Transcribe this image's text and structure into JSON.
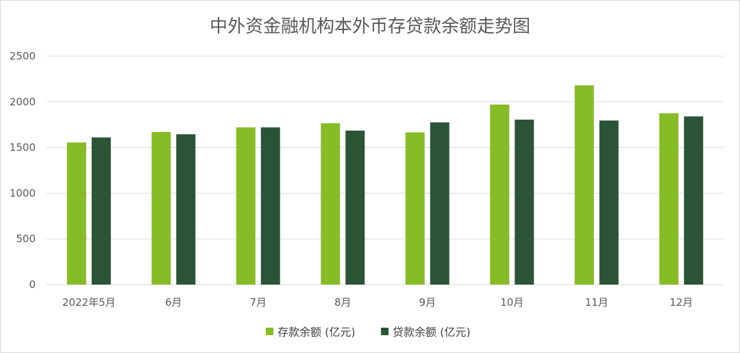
{
  "chart_data": {
    "type": "bar",
    "title": "中外资金融机构本外币存贷款余额走势图",
    "categories": [
      "2022年5月",
      "6月",
      "7月",
      "8月",
      "9月",
      "10月",
      "11月",
      "12月"
    ],
    "series": [
      {
        "name": "存款余额 (亿元)",
        "color": "#86bc25",
        "values": [
          1555,
          1670,
          1720,
          1765,
          1665,
          1970,
          2180,
          1875
        ]
      },
      {
        "name": "贷款余额 (亿元)",
        "color": "#2b5436",
        "values": [
          1610,
          1645,
          1720,
          1685,
          1775,
          1805,
          1795,
          1840
        ]
      }
    ],
    "ylim": [
      0,
      2500
    ],
    "yticks": [
      0,
      500,
      1000,
      1500,
      2000,
      2500
    ],
    "grid": true,
    "legend": "bottom"
  }
}
